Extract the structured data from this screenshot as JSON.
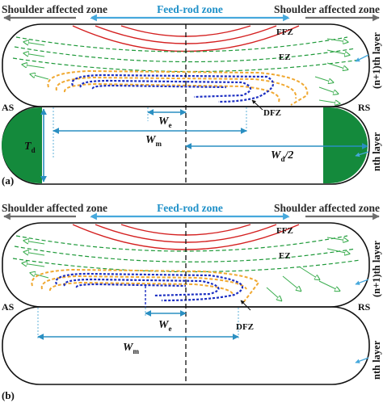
{
  "panels": [
    {
      "id": "a",
      "panel_label": "(a)",
      "zones": {
        "left": "Shoulder affected zone",
        "center": "Feed-rod zone",
        "right": "Shoulder affected zone"
      },
      "regions": {
        "ffz": "FFZ",
        "ez": "EZ",
        "dfz": "DFZ"
      },
      "sides": {
        "as": "AS",
        "rs": "RS"
      },
      "layers": {
        "upper": "(n+1)th layer",
        "lower": "nth layer"
      },
      "dimensions": {
        "td": {
          "main": "T",
          "sub": "d"
        },
        "we": {
          "main": "W",
          "sub": "e"
        },
        "wm": {
          "main": "W",
          "sub": "m"
        },
        "wd": {
          "main": "W",
          "sub": "d",
          "suffix": "/2"
        }
      }
    },
    {
      "id": "b",
      "panel_label": "(b)",
      "zones": {
        "left": "Shoulder affected zone",
        "center": "Feed-rod zone",
        "right": "Shoulder affected zone"
      },
      "regions": {
        "ffz": "FFZ",
        "ez": "EZ",
        "dfz": "DFZ"
      },
      "sides": {
        "as": "AS",
        "rs": "RS"
      },
      "layers": {
        "upper": "(n+1)th layer",
        "lower": "nth layer"
      },
      "dimensions": {
        "we": {
          "main": "W",
          "sub": "e"
        },
        "wm": {
          "main": "W",
          "sub": "m"
        }
      }
    }
  ],
  "colors": {
    "outline": "#111111",
    "ffz_lines": "#d42020",
    "ez_lines": "#1f9a3a",
    "flow_arrows": "#3cae50",
    "orange_band": "#f0a830",
    "blue_band": "#1c2fc2",
    "dimension_arrows": "#2a8fc2",
    "zone_arrows": "#6d6d6d",
    "feed_arrow": "#46a8dc",
    "green_fill": "#148a3c"
  }
}
